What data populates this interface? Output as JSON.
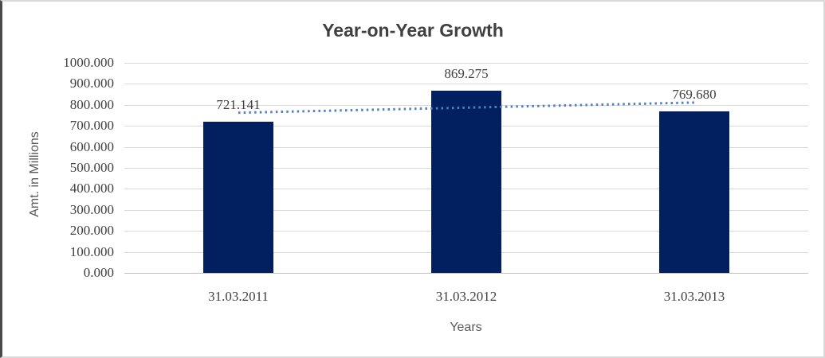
{
  "chart_data": {
    "type": "bar",
    "title": "Year-on-Year Growth",
    "xlabel": "Years",
    "ylabel": "Amt. in Millions",
    "categories": [
      "31.03.2011",
      "31.03.2012",
      "31.03.2013"
    ],
    "values": [
      721.141,
      869.275,
      769.68
    ],
    "value_labels": [
      "721.141",
      "869.275",
      "769.680"
    ],
    "ylim": [
      0,
      1000
    ],
    "ytick_labels": [
      "1000.000",
      "900.000",
      "800.000",
      "700.000",
      "600.000",
      "500.000",
      "400.000",
      "300.000",
      "200.000",
      "100.000",
      "0.000"
    ],
    "grid": true,
    "legend_position": "none",
    "trendline": {
      "kind": "linear",
      "style": "dotted"
    },
    "colors": {
      "bar": "#02205f",
      "trendline": "#4f81bd",
      "gridline": "#d9d9d9",
      "axis_line": "#c0c0c0",
      "title_text": "#404040",
      "tick_text": "#404040",
      "axis_title_text": "#595959",
      "frame_border": "#d9d9d9",
      "frame_left_border": "#4a4a4a"
    }
  }
}
